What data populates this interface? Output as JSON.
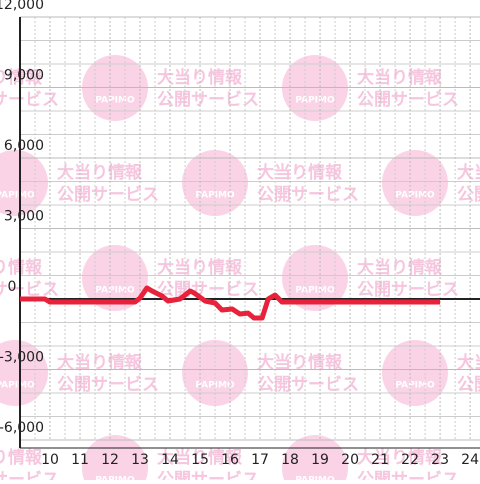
{
  "chart_data": {
    "type": "line",
    "x": [
      9,
      9.83,
      10,
      12.83,
      13,
      13.23,
      13.4,
      13.73,
      13.93,
      14.33,
      14.67,
      14.8,
      15.17,
      15.5,
      15.73,
      16.07,
      16.33,
      16.6,
      16.8,
      17.07,
      17.27,
      17.5,
      17.73,
      23
    ],
    "series": [
      {
        "color": "#e8223a",
        "values": [
          0,
          0,
          -130,
          -130,
          40,
          470,
          340,
          130,
          -85,
          0,
          340,
          260,
          -85,
          -170,
          -470,
          -425,
          -640,
          -600,
          -810,
          -810,
          0,
          170,
          -130,
          -130
        ]
      }
    ],
    "xlim": [
      9,
      24.33
    ],
    "xticks": [
      10,
      11,
      12,
      13,
      14,
      15,
      16,
      17,
      18,
      19,
      20,
      21,
      22,
      23,
      24
    ],
    "ylim": [
      -6000,
      12000
    ],
    "yticks": [
      {
        "value": -6000,
        "label": "-6,000"
      },
      {
        "value": -3000,
        "label": "-3,000"
      },
      0,
      {
        "value": 3000,
        "label": "3,000"
      },
      {
        "value": 6000,
        "label": "6,000"
      },
      {
        "value": 9000,
        "label": "9,000"
      },
      {
        "value": 12000,
        "label": "12,000"
      }
    ],
    "grid": true,
    "watermark": {
      "logo": "PAPIMO",
      "line1": "大当り情報",
      "line2": "公開サービス"
    }
  }
}
